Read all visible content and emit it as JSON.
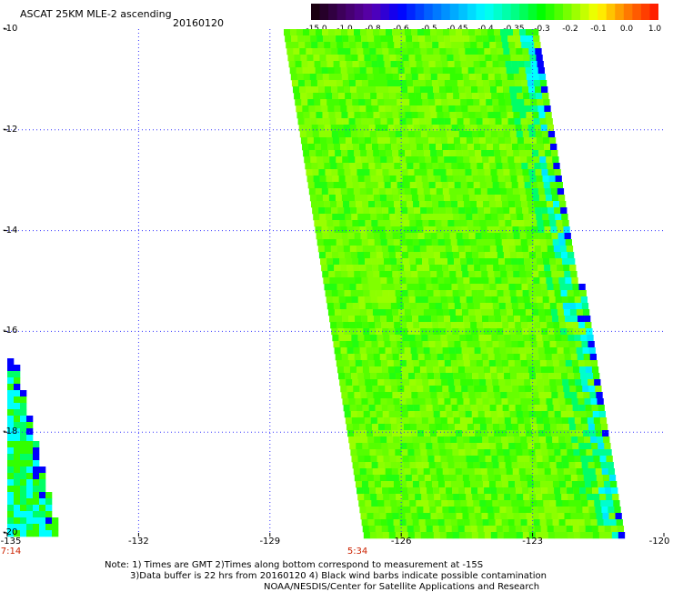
{
  "header": {
    "title": "ASCAT 25KM MLE-2 ascending",
    "date": "20160120"
  },
  "colorbar": {
    "labels": [
      "-15.0",
      "-1.0",
      "-0.8",
      "-0.6",
      "-0.5",
      "-0.45",
      "-0.4",
      "-0.35",
      "-0.3",
      "-0.2",
      "-0.1",
      "0.0",
      "1.0"
    ],
    "colors": [
      "#1a0010",
      "#400060",
      "#5a00b0",
      "#0000ff",
      "#0060ff",
      "#00b0ff",
      "#00ffff",
      "#00ff90",
      "#00ff00",
      "#80ff00",
      "#ffff00",
      "#ff8000",
      "#ff2000"
    ]
  },
  "axes": {
    "x_ticks": [
      "-135",
      "-132",
      "-129",
      "-126",
      "-123",
      "-120"
    ],
    "y_ticks": [
      "-10",
      "-12",
      "-14",
      "-16",
      "-18",
      "-20"
    ]
  },
  "time_labels": [
    {
      "text": "7:14",
      "lon": -135
    },
    {
      "text": "5:34",
      "lon": -127
    }
  ],
  "notes": {
    "line1": "Note: 1) Times are GMT 2)Times along bottom correspond to measurement at -15S",
    "line2": "3)Data buffer is 22 hrs from 20160120 4) Black wind barbs indicate possible contamination",
    "line3": "NOAA/NESDIS/Center for Satellite Applications and Research"
  }
}
